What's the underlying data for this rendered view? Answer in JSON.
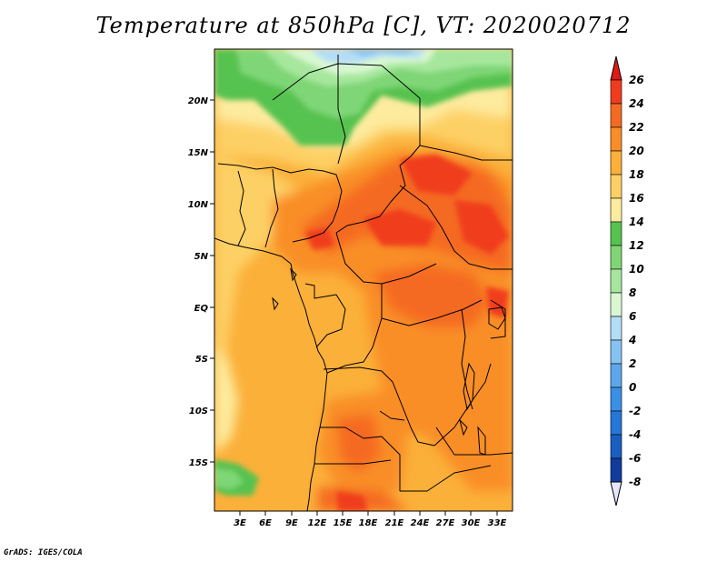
{
  "title": "Temperature at 850hPa [C], VT: 2020020712",
  "credit": "GrADS: IGES/COLA",
  "map": {
    "lat_labels": [
      "20N",
      "15N",
      "10N",
      "5N",
      "EQ",
      "5S",
      "10S",
      "15S"
    ],
    "lon_labels": [
      "3E",
      "6E",
      "9E",
      "12E",
      "15E",
      "18E",
      "21E",
      "24E",
      "27E",
      "30E",
      "33E"
    ]
  },
  "colorbar": {
    "levels": [
      "26",
      "24",
      "22",
      "20",
      "18",
      "16",
      "14",
      "12",
      "10",
      "8",
      "6",
      "4",
      "2",
      "0",
      "-2",
      "-4",
      "-6",
      "-8"
    ],
    "colors": [
      "#f03c1e",
      "#f56a23",
      "#f98e28",
      "#fbb03a",
      "#fdd065",
      "#fdeb9e",
      "#56c24f",
      "#7fd676",
      "#a6e79d",
      "#d9f7d2",
      "#b4ddf7",
      "#86c2f2",
      "#5da7ec",
      "#3a8fe6",
      "#2577d8",
      "#1a5ec2",
      "#113c9c",
      "#0b1c6e"
    ],
    "top_arrow_color": "#e01a14",
    "bottom_arrow_color": "#e6e6fa"
  }
}
